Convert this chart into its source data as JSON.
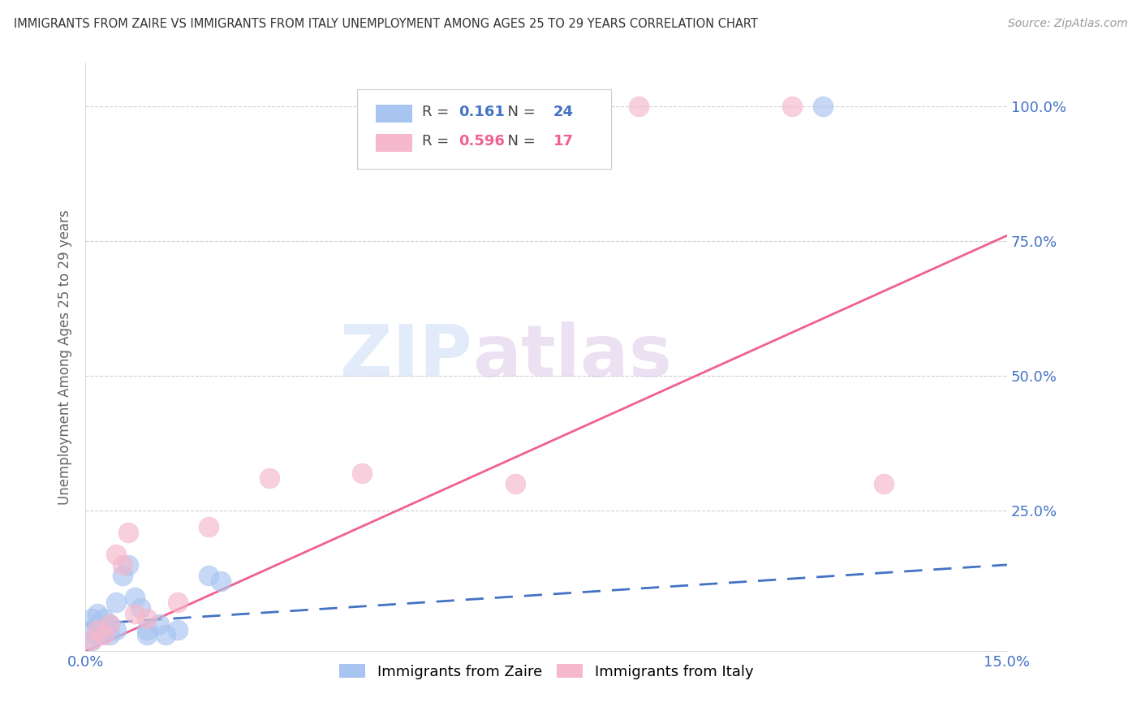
{
  "title": "IMMIGRANTS FROM ZAIRE VS IMMIGRANTS FROM ITALY UNEMPLOYMENT AMONG AGES 25 TO 29 YEARS CORRELATION CHART",
  "source": "Source: ZipAtlas.com",
  "ylabel": "Unemployment Among Ages 25 to 29 years",
  "xlim": [
    0,
    0.15
  ],
  "ylim": [
    -0.01,
    1.08
  ],
  "yticks": [
    0.0,
    0.25,
    0.5,
    0.75,
    1.0
  ],
  "ytick_labels": [
    "",
    "25.0%",
    "50.0%",
    "75.0%",
    "100.0%"
  ],
  "xticks": [
    0.0,
    0.05,
    0.1,
    0.15
  ],
  "xtick_labels": [
    "0.0%",
    "",
    "",
    "15.0%"
  ],
  "legend_labels": [
    "Immigrants from Zaire",
    "Immigrants from Italy"
  ],
  "zaire_R": "0.161",
  "zaire_N": "24",
  "italy_R": "0.596",
  "italy_N": "17",
  "zaire_color": "#a8c4f0",
  "italy_color": "#f5b8cc",
  "zaire_line_color": "#4472c4",
  "italy_line_color": "#f06090",
  "axis_label_color": "#666666",
  "tick_label_color": "#4472c4",
  "background_color": "#ffffff",
  "watermark_zip": "ZIP",
  "watermark_atlas": "atlas",
  "zaire_x": [
    0.001,
    0.001,
    0.001,
    0.002,
    0.002,
    0.002,
    0.003,
    0.003,
    0.004,
    0.004,
    0.005,
    0.005,
    0.006,
    0.007,
    0.008,
    0.009,
    0.01,
    0.01,
    0.012,
    0.013,
    0.015,
    0.02,
    0.022,
    0.12
  ],
  "zaire_y": [
    0.01,
    0.03,
    0.05,
    0.02,
    0.04,
    0.06,
    0.03,
    0.05,
    0.02,
    0.04,
    0.03,
    0.08,
    0.13,
    0.15,
    0.09,
    0.07,
    0.03,
    0.02,
    0.04,
    0.02,
    0.03,
    0.13,
    0.12,
    1.0
  ],
  "italy_x": [
    0.001,
    0.002,
    0.003,
    0.004,
    0.005,
    0.006,
    0.007,
    0.008,
    0.01,
    0.015,
    0.02,
    0.03,
    0.045,
    0.07,
    0.09,
    0.115,
    0.13
  ],
  "italy_y": [
    0.01,
    0.03,
    0.02,
    0.04,
    0.17,
    0.15,
    0.21,
    0.06,
    0.05,
    0.08,
    0.22,
    0.31,
    0.32,
    0.3,
    1.0,
    1.0,
    0.3
  ],
  "zaire_trend_x": [
    0.0,
    0.15
  ],
  "zaire_trend_y": [
    0.04,
    0.15
  ],
  "italy_trend_x": [
    0.0,
    0.15
  ],
  "italy_trend_y": [
    -0.01,
    0.76
  ]
}
